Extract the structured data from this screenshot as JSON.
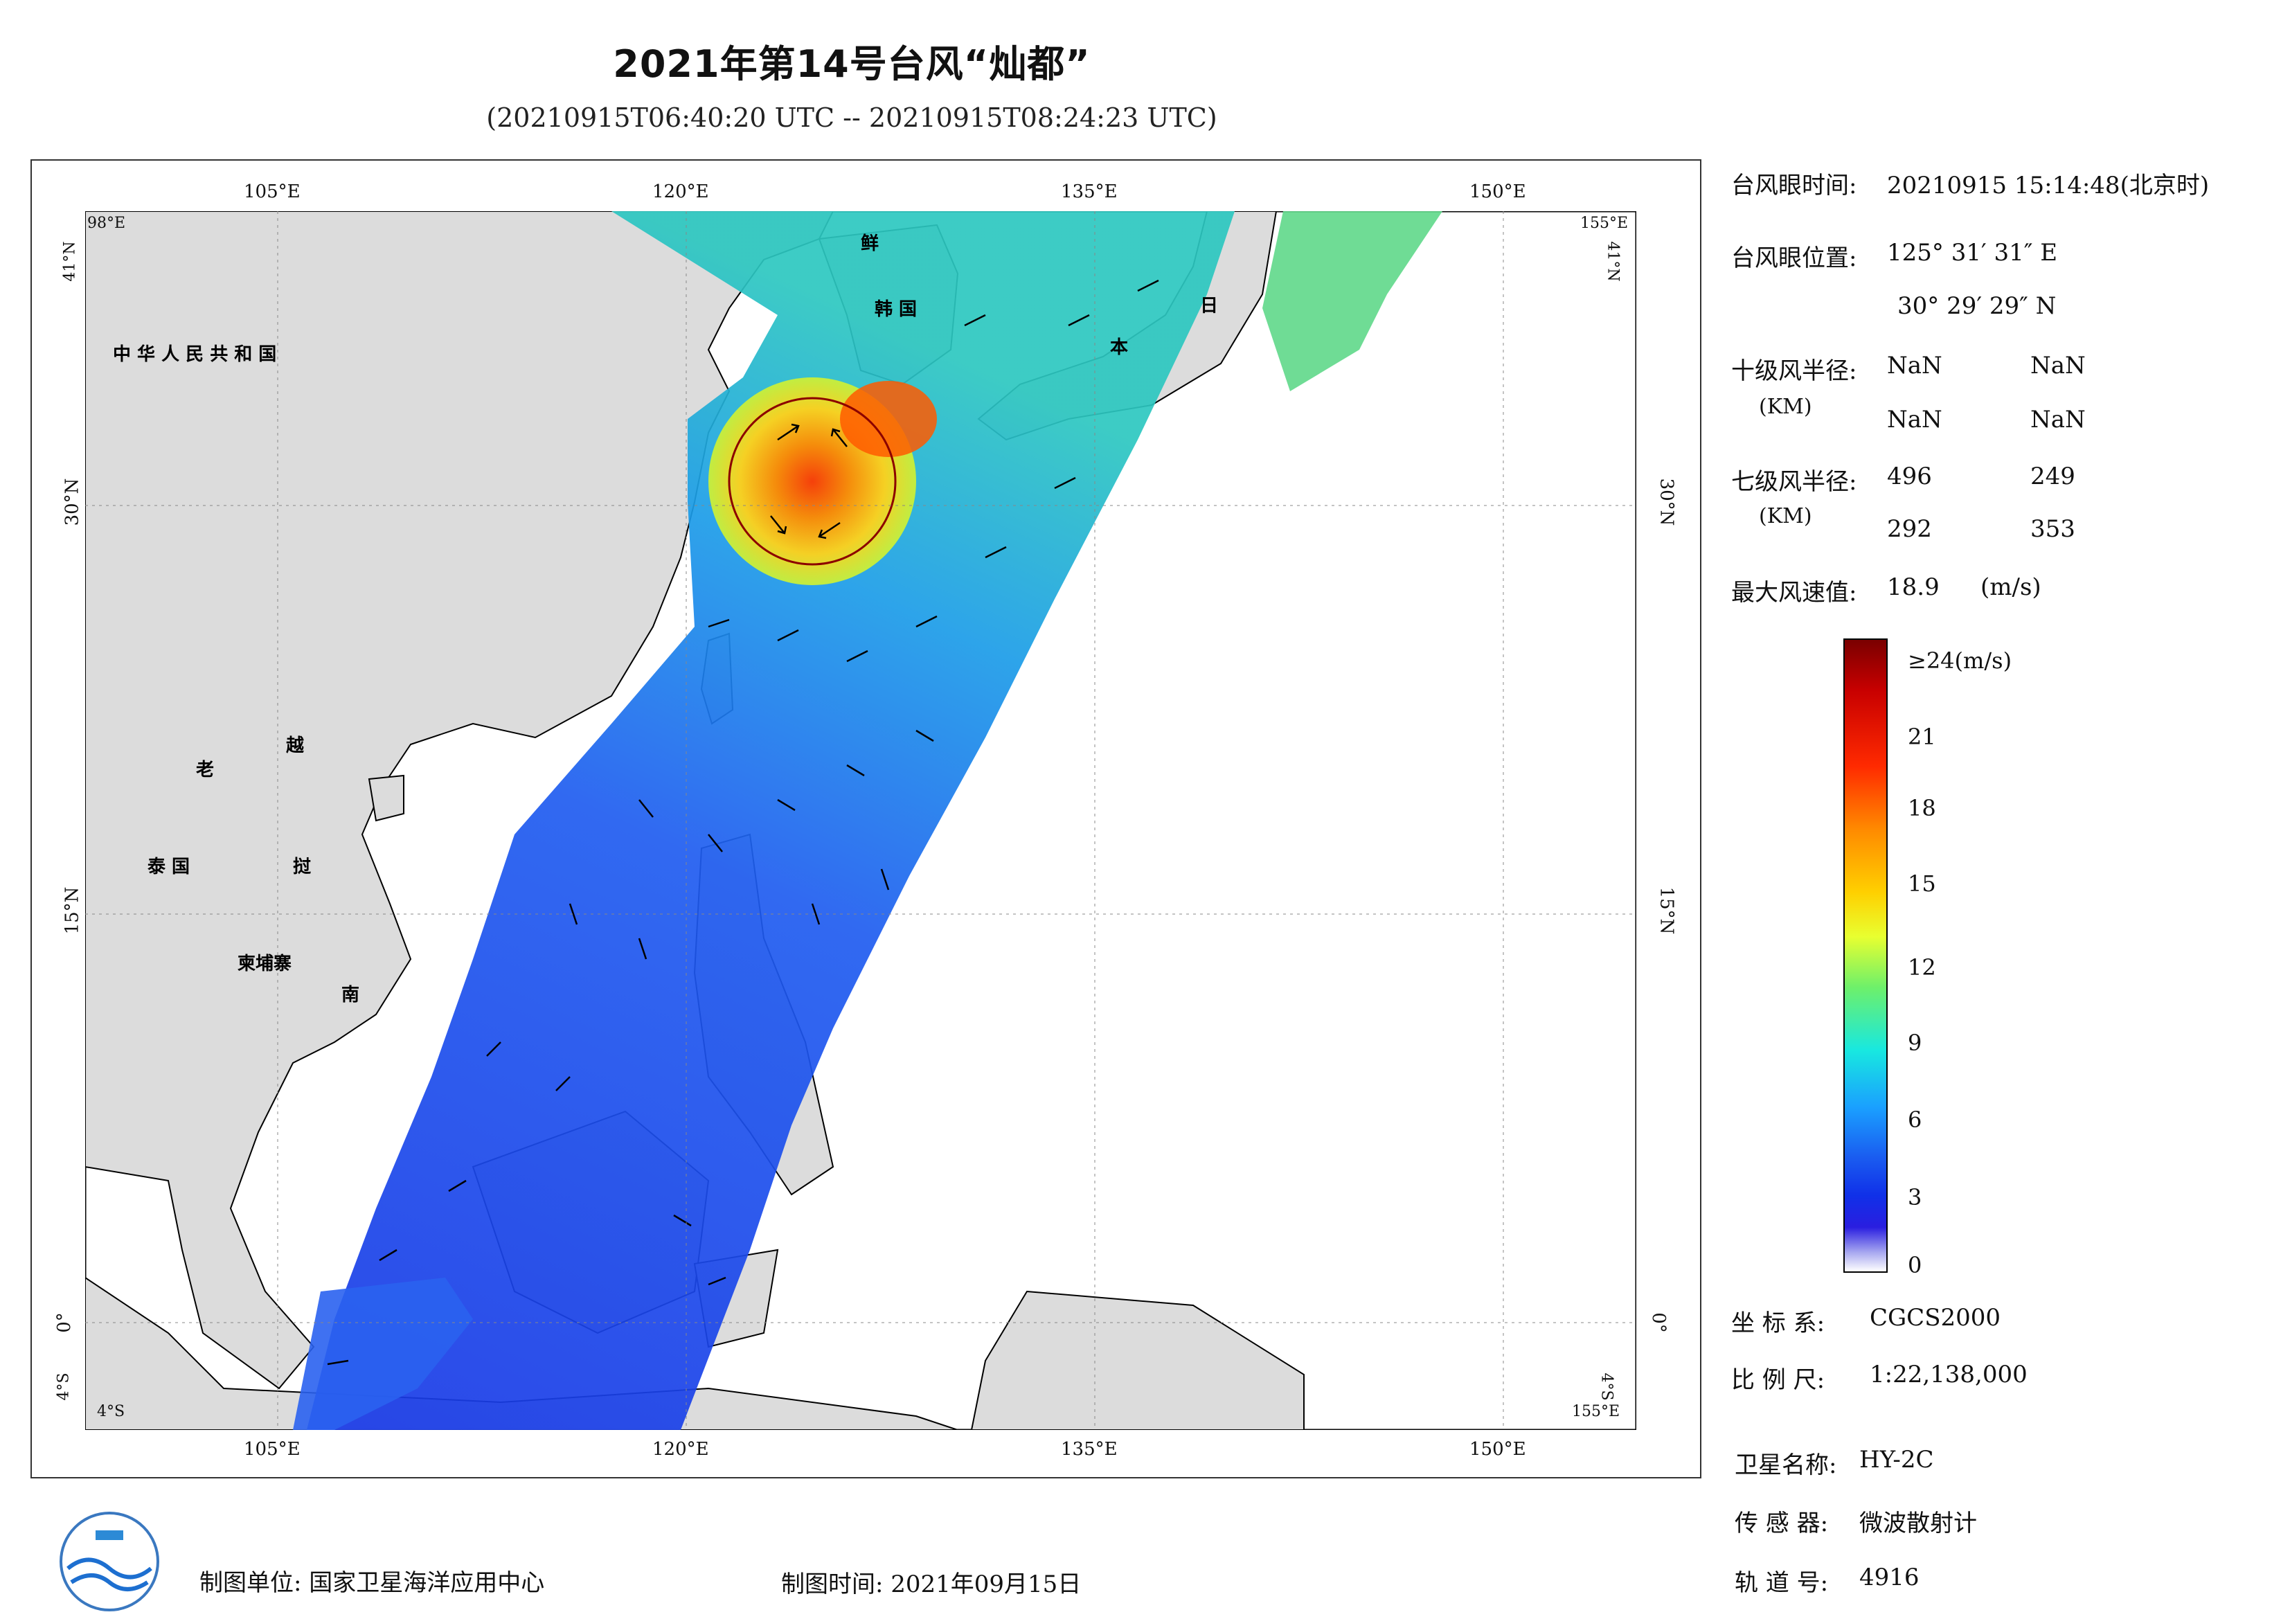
{
  "title": "2021年第14号台风“灿都”",
  "subtitle": "(20210915T06:40:20 UTC -- 20210915T08:24:23 UTC)",
  "map": {
    "lon_labels": [
      "105°E",
      "120°E",
      "135°E",
      "150°E"
    ],
    "lat_labels": [
      "30°N",
      "15°N",
      "0°"
    ],
    "corner_labels": {
      "top_left": "98°E",
      "top_right": "155°E",
      "left_top": "41°N",
      "right_top": "41°N",
      "left_bottom": "4°S",
      "right_bottom": "4°S",
      "bottom_left": "4°S",
      "bottom_right": "155°E"
    },
    "place_names": [
      "中 华 人 民 共 和 国",
      "老",
      "越",
      "泰 国",
      "挝",
      "柬埔寨",
      "南",
      "鲜",
      "韩 国",
      "日",
      "本"
    ],
    "colors": {
      "land": "#dcdcdc",
      "sea": "#ffffff",
      "coast": "#000000"
    }
  },
  "info": {
    "eye_time_label": "台风眼时间:",
    "eye_time_value": "20210915 15:14:48(北京时)",
    "eye_pos_label": "台风眼位置:",
    "eye_pos_lon": "125° 31′ 31″ E",
    "eye_pos_lat": "30° 29′ 29″ N",
    "r10_label": "十级风半径:",
    "r10_unit": "(KM)",
    "r10_values": [
      "NaN",
      "NaN",
      "NaN",
      "NaN"
    ],
    "r7_label": "七级风半径:",
    "r7_unit": "(KM)",
    "r7_values": [
      "496",
      "249",
      "292",
      "353"
    ],
    "max_wind_label": "最大风速值:",
    "max_wind_value": "18.9",
    "max_wind_unit": "(m/s)"
  },
  "legend": {
    "ticks": [
      "≥24(m/s)",
      "21",
      "18",
      "15",
      "12",
      "9",
      "6",
      "3",
      "0"
    ],
    "colors": [
      "#7a0000",
      "#d40000",
      "#ff4a00",
      "#ffb200",
      "#f5ff2a",
      "#6ef06a",
      "#18e8e0",
      "#1a8cff",
      "#1030e8",
      "#2a1ee0",
      "#ffffff"
    ]
  },
  "meta": {
    "coord_label": "坐 标 系:",
    "coord_value": "CGCS2000",
    "scale_label": "比 例 尺:",
    "scale_value": "1:22,138,000",
    "satellite_label": "卫星名称:",
    "satellite_value": "HY-2C",
    "sensor_label": "传 感 器:",
    "sensor_value": "微波散射计",
    "orbit_label": "轨 道 号:",
    "orbit_value": "4916"
  },
  "footer": {
    "maker": "制图单位: 国家卫星海洋应用中心",
    "date": "制图时间: 2021年09月15日"
  }
}
